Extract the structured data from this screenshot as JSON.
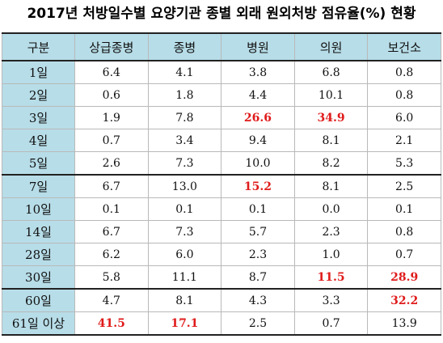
{
  "title": "2017년 처방일수별 요양기관 종별 외래 원외처방 점유율(%) 현황",
  "header": [
    "구분",
    "상급종병",
    "종병",
    "병원",
    "의원",
    "보건소"
  ],
  "rows": [
    {
      "label": "1일",
      "values": [
        "6.4",
        "4.1",
        "3.8",
        "6.8",
        "0.8"
      ]
    },
    {
      "label": "2일",
      "values": [
        "0.6",
        "1.8",
        "4.4",
        "10.1",
        "0.8"
      ]
    },
    {
      "label": "3일",
      "values": [
        "1.9",
        "7.8",
        "26.6",
        "34.9",
        "6.0"
      ]
    },
    {
      "label": "4일",
      "values": [
        "0.7",
        "3.4",
        "9.4",
        "8.1",
        "2.1"
      ]
    },
    {
      "label": "5일",
      "values": [
        "2.6",
        "7.3",
        "10.0",
        "8.2",
        "5.3"
      ]
    },
    {
      "label": "7일",
      "values": [
        "6.7",
        "13.0",
        "15.2",
        "8.1",
        "2.5"
      ]
    },
    {
      "label": "10일",
      "values": [
        "0.1",
        "0.1",
        "0.1",
        "0.0",
        "0.1"
      ]
    },
    {
      "label": "14일",
      "values": [
        "6.7",
        "7.3",
        "5.7",
        "2.3",
        "0.8"
      ]
    },
    {
      "label": "28일",
      "values": [
        "6.2",
        "6.0",
        "2.3",
        "1.0",
        "0.7"
      ]
    },
    {
      "label": "30일",
      "values": [
        "5.8",
        "11.1",
        "8.7",
        "11.5",
        "28.9"
      ]
    },
    {
      "label": "60일",
      "values": [
        "4.7",
        "8.1",
        "4.3",
        "3.3",
        "32.2"
      ]
    },
    {
      "label": "61일 이상",
      "values": [
        "41.5",
        "17.1",
        "2.5",
        "0.7",
        "13.9"
      ]
    }
  ],
  "highlight_color": "#e01b1b",
  "highlighted_cells": [
    [
      2,
      2
    ],
    [
      2,
      3
    ],
    [
      5,
      2
    ],
    [
      9,
      3
    ],
    [
      9,
      4
    ],
    [
      10,
      4
    ],
    [
      11,
      0
    ],
    [
      11,
      1
    ]
  ],
  "group_start_rows": [
    0,
    5,
    10
  ],
  "header_fill": "#b7dde8"
}
